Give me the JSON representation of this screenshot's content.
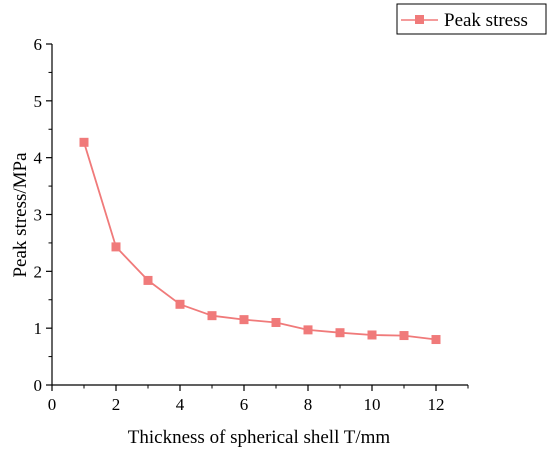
{
  "chart_data": {
    "type": "line",
    "xlabel": "Thickness of spherical shell T/mm",
    "ylabel": "Peak stress/MPa",
    "xlim": [
      0,
      13
    ],
    "ylim": [
      0,
      6
    ],
    "x_ticks": [
      "0",
      "2",
      "4",
      "6",
      "8",
      "10",
      "12"
    ],
    "y_ticks": [
      "0",
      "1",
      "2",
      "3",
      "4",
      "5",
      "6"
    ],
    "grid": false,
    "legend_position": "top-right",
    "series": [
      {
        "name": "Peak stress",
        "color": "#f07a7a",
        "marker": "square",
        "x": [
          1,
          2,
          3,
          4,
          5,
          6,
          7,
          8,
          9,
          10,
          11,
          12
        ],
        "values": [
          4.27,
          2.43,
          1.84,
          1.42,
          1.22,
          1.15,
          1.1,
          0.97,
          0.92,
          0.88,
          0.87,
          0.8
        ]
      }
    ]
  }
}
